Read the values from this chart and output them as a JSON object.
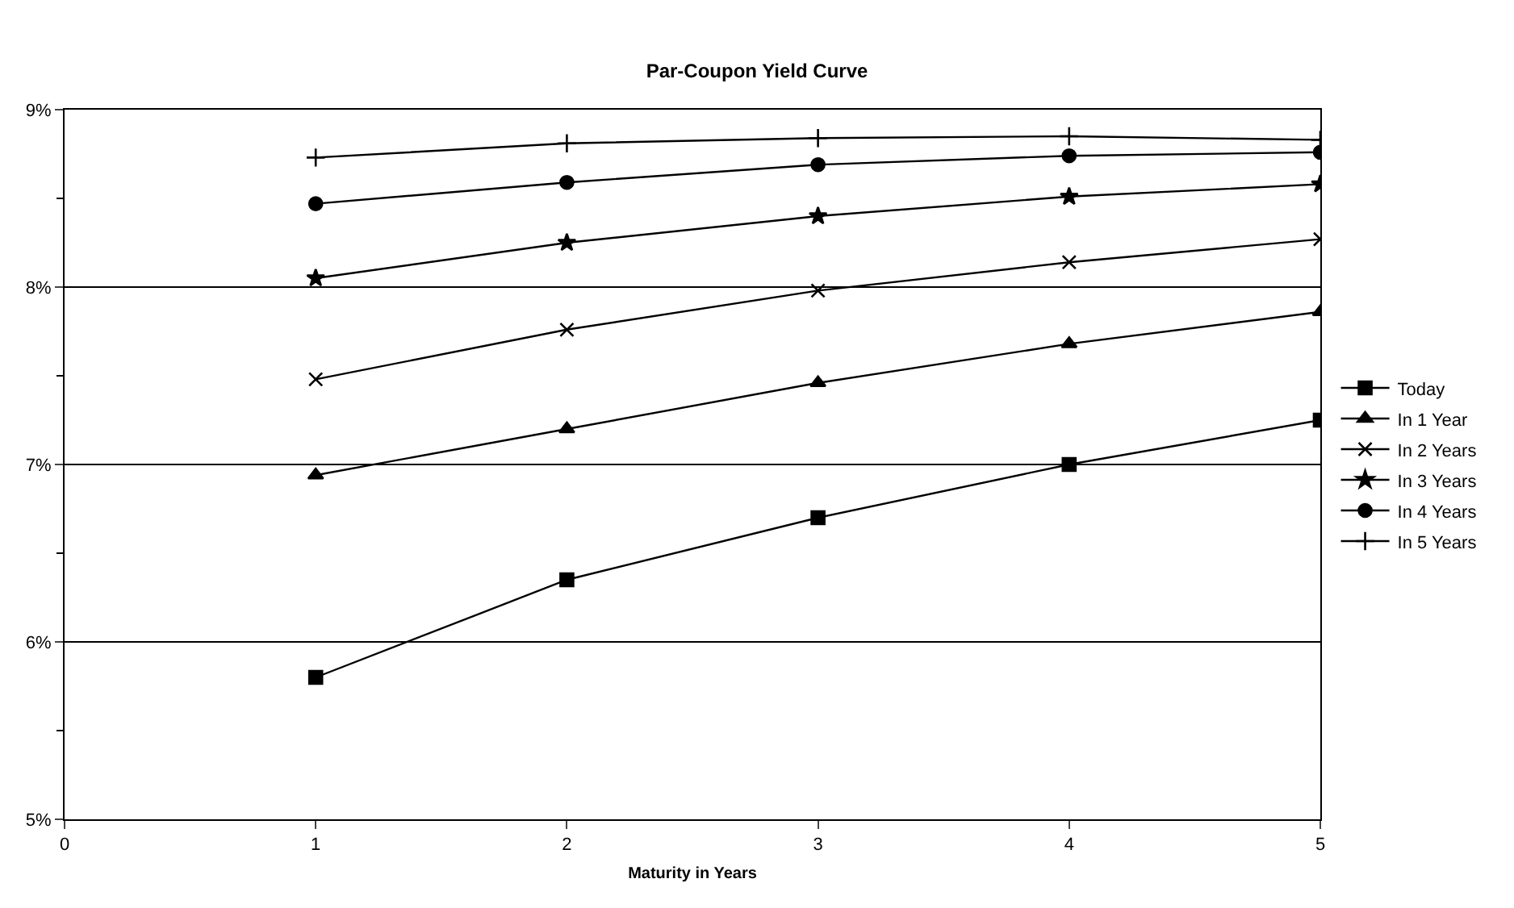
{
  "chart_data": {
    "type": "line",
    "title": "Par-Coupon Yield Curve",
    "xlabel": "Maturity in Years",
    "x": [
      1,
      2,
      3,
      4,
      5
    ],
    "series": [
      {
        "name": "Today",
        "color": "#000000",
        "marker": "square",
        "values": [
          5.8,
          6.35,
          6.7,
          7.0,
          7.25
        ]
      },
      {
        "name": "In 1 Year",
        "color": "#000000",
        "marker": "triangle",
        "values": [
          6.94,
          7.2,
          7.46,
          7.68,
          7.86
        ]
      },
      {
        "name": "In 2 Years",
        "color": "#000000",
        "marker": "cross",
        "values": [
          7.48,
          7.76,
          7.98,
          8.14,
          8.27
        ]
      },
      {
        "name": "In 3 Years",
        "color": "#000000",
        "marker": "star",
        "values": [
          8.05,
          8.25,
          8.4,
          8.51,
          8.58
        ]
      },
      {
        "name": "In 4 Years",
        "color": "#000000",
        "marker": "circle",
        "values": [
          8.47,
          8.59,
          8.69,
          8.74,
          8.76
        ]
      },
      {
        "name": "In 5 Years",
        "color": "#000000",
        "marker": "plus",
        "values": [
          8.73,
          8.81,
          8.84,
          8.85,
          8.83
        ]
      }
    ],
    "xlim": [
      0,
      5
    ],
    "xticks": [
      0,
      1,
      2,
      3,
      4,
      5
    ],
    "ylim": [
      5,
      9
    ],
    "yticks": [
      {
        "value": 5,
        "label": "5%"
      },
      {
        "value": 5.5,
        "label": null
      },
      {
        "value": 6,
        "label": "6%"
      },
      {
        "value": 6.5,
        "label": null
      },
      {
        "value": 7,
        "label": "7%"
      },
      {
        "value": 7.5,
        "label": null
      },
      {
        "value": 8,
        "label": "8%"
      },
      {
        "value": 8.5,
        "label": null
      },
      {
        "value": 9,
        "label": "9%"
      }
    ],
    "grid": "y",
    "legend": "right",
    "line_style": "solid"
  }
}
